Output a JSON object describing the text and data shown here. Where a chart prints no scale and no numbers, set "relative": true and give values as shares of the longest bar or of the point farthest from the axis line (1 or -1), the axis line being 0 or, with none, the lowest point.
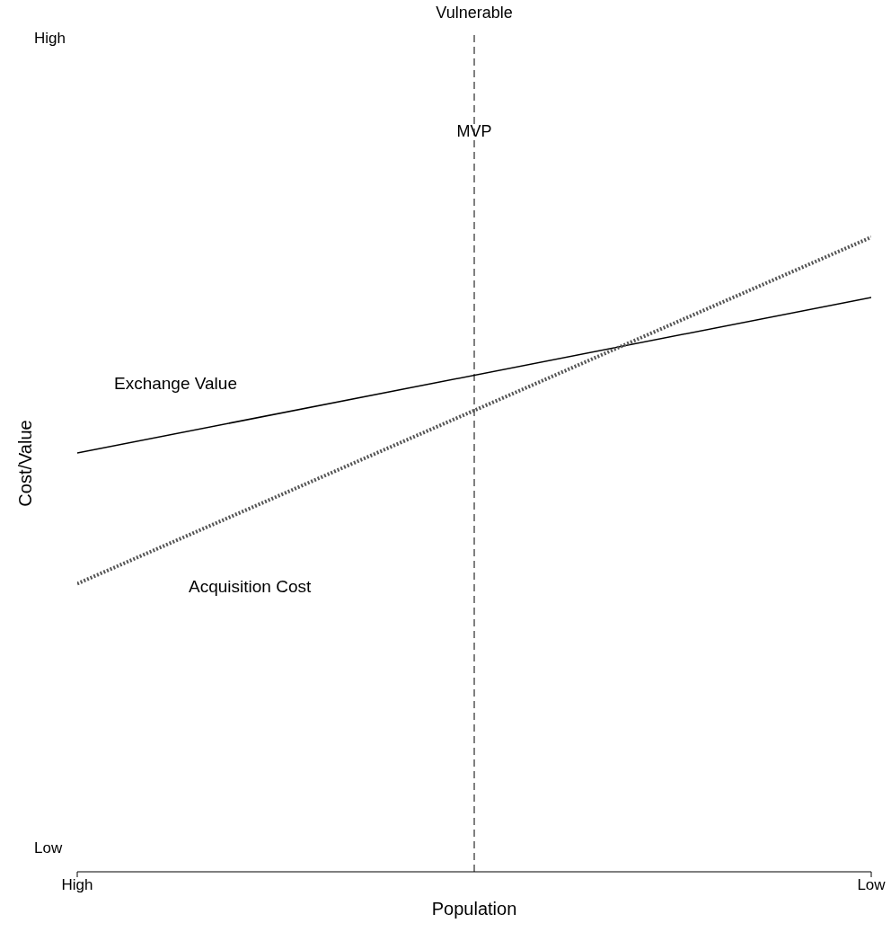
{
  "chart_data": {
    "type": "line",
    "title": "Vulnerable",
    "xlabel": "Population",
    "ylabel": "Cost/Value",
    "relative": true,
    "categories": [
      "High",
      "Low"
    ],
    "series": [
      {
        "name": "Exchange Value",
        "color": "#000000",
        "values": [
          0.66,
          0.905
        ],
        "line_style": "solid"
      },
      {
        "name": "Acquisition Cost",
        "color": "#555555",
        "values": [
          0.454,
          1.0
        ],
        "line_style": "dotted"
      }
    ],
    "annotations": [
      "High",
      "Low",
      "MVP"
    ],
    "legend": false,
    "grid": false,
    "marker": "none"
  }
}
